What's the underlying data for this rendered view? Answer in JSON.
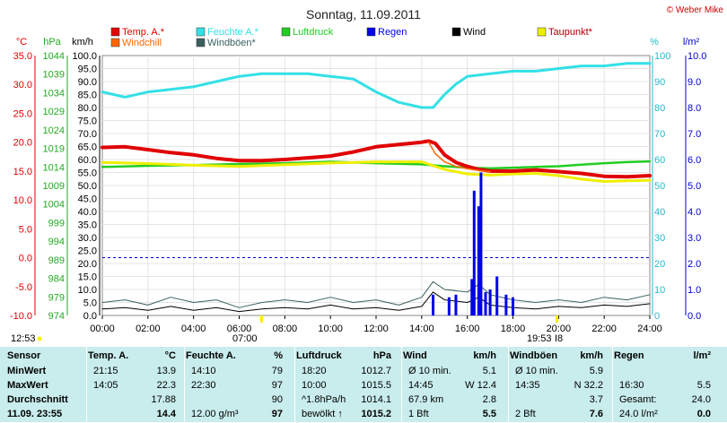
{
  "title": "Sonntag, 11.09.2011",
  "copyright": "© Weber Mike",
  "colors": {
    "temp": "#e00000",
    "humidity": "#33e0e6",
    "pressure": "#22cc22",
    "rain": "#0000ee",
    "wind": "#000000",
    "dewpoint": "#eeee00",
    "windchill": "#ff6600",
    "gust": "#3a6060",
    "axis_temp": "#e00000",
    "axis_press": "#22aa22",
    "axis_hum": "#22bbcc",
    "axis_rain": "#0000cc"
  },
  "legend": [
    {
      "label": "Temp. A.*",
      "color": "#e00000"
    },
    {
      "label": "Feuchte A.*",
      "color": "#33e0e6"
    },
    {
      "label": "Luftdruck",
      "color": "#22cc22"
    },
    {
      "label": "Regen",
      "color": "#0000ee"
    },
    {
      "label": "Wind",
      "color": "#000000"
    },
    {
      "label": "Taupunkt*",
      "color": "#eeee00"
    },
    {
      "label": "Windchill",
      "color": "#ff6600"
    },
    {
      "label": "Windböen*",
      "color": "#3a6060"
    }
  ],
  "axis_units": {
    "temp": "°C",
    "press": "hPa",
    "wind": "km/h",
    "hum": "%",
    "rain": "l/m²"
  },
  "time_marks": {
    "start": "12:53",
    "sunrise": "07:00",
    "sunset": "19:53",
    "sunset_suffix": "I8"
  },
  "chart_data": {
    "type": "line",
    "x_ticks": [
      "00:00",
      "02:00",
      "04:00",
      "06:00",
      "08:00",
      "10:00",
      "12:00",
      "14:00",
      "16:00",
      "18:00",
      "20:00",
      "22:00",
      "24:00"
    ],
    "xlim": [
      0,
      24
    ],
    "temp_axis": {
      "label": "°C",
      "range": [
        -10,
        35
      ],
      "ticks": [
        "35.0",
        "30.0",
        "25.0",
        "20.0",
        "15.0",
        "10.0",
        "5.0",
        "0.0",
        "-5.0",
        "-10.0"
      ]
    },
    "press_axis": {
      "label": "hPa",
      "range": [
        974,
        1044
      ],
      "ticks": [
        "1044",
        "1039",
        "1034",
        "1029",
        "1024",
        "1019",
        "1014",
        "1009",
        "1004",
        "999",
        "994",
        "989",
        "984",
        "979",
        "974"
      ]
    },
    "wind_axis": {
      "label": "km/h",
      "range": [
        0,
        100
      ],
      "ticks": [
        "100.0",
        "95.0",
        "90.0",
        "85.0",
        "80.0",
        "75.0",
        "70.0",
        "65.0",
        "60.0",
        "55.0",
        "50.0",
        "45.0",
        "40.0",
        "35.0",
        "30.0",
        "25.0",
        "20.0",
        "15.0",
        "10.0",
        "5.0",
        "0.0"
      ]
    },
    "hum_axis": {
      "label": "%",
      "range": [
        0,
        100
      ],
      "ticks": [
        "100",
        "90",
        "80",
        "70",
        "60",
        "50",
        "40",
        "30",
        "20",
        "10",
        "0"
      ]
    },
    "rain_axis": {
      "label": "l/m²",
      "range": [
        0,
        10
      ],
      "ticks": [
        "10.0",
        "9.0",
        "8.0",
        "7.0",
        "6.0",
        "5.0",
        "4.0",
        "3.0",
        "2.0",
        "1.0",
        "0.0"
      ]
    },
    "series": [
      {
        "name": "Temp. A.*",
        "axis": "temp",
        "x": [
          0,
          1,
          2,
          3,
          4,
          5,
          6,
          7,
          8,
          9,
          10,
          11,
          12,
          13,
          14,
          14.3,
          14.6,
          15,
          15.5,
          16,
          16.5,
          17,
          18,
          19,
          20,
          21,
          22,
          23,
          24
        ],
        "y": [
          19.1,
          19.2,
          18.7,
          18.2,
          17.8,
          17.2,
          16.8,
          16.8,
          17.0,
          17.3,
          17.6,
          18.3,
          19.2,
          19.6,
          20.0,
          20.2,
          19.8,
          17.8,
          16.5,
          15.8,
          15.3,
          15.0,
          15.0,
          15.2,
          14.9,
          14.6,
          14.1,
          14.0,
          14.2
        ]
      },
      {
        "name": "Feuchte A.*",
        "axis": "hum",
        "x": [
          0,
          0.5,
          1,
          2,
          3,
          4,
          5,
          6,
          7,
          8,
          9,
          10,
          11,
          12,
          13,
          14,
          14.5,
          15,
          15.5,
          16,
          17,
          18,
          19,
          20,
          21,
          22,
          23,
          24
        ],
        "y": [
          86,
          85,
          84,
          86,
          87,
          88,
          90,
          92,
          93,
          93,
          93,
          92,
          91,
          86,
          82,
          80,
          80,
          85,
          89,
          92,
          93,
          94,
          94,
          95,
          96,
          96,
          97,
          97
        ]
      },
      {
        "name": "Luftdruck",
        "axis": "press",
        "x": [
          0,
          2,
          4,
          6,
          8,
          10,
          12,
          14,
          15,
          16,
          17,
          18,
          19,
          20,
          21,
          22,
          23,
          24
        ],
        "y": [
          1014.0,
          1014.3,
          1014.5,
          1014.8,
          1015.0,
          1015.4,
          1015.0,
          1014.7,
          1014.2,
          1013.8,
          1013.6,
          1013.8,
          1014.0,
          1014.2,
          1014.6,
          1015.0,
          1015.3,
          1015.5
        ]
      },
      {
        "name": "Taupunkt*",
        "axis": "temp",
        "x": [
          0,
          2,
          4,
          6,
          8,
          10,
          12,
          14,
          15,
          16,
          17,
          18,
          19,
          20,
          21,
          22,
          23,
          24
        ],
        "y": [
          16.5,
          16.3,
          16.0,
          15.8,
          16.1,
          16.4,
          16.6,
          16.6,
          15.3,
          14.5,
          14.3,
          14.5,
          14.6,
          14.2,
          13.6,
          13.2,
          13.3,
          13.4
        ]
      },
      {
        "name": "Wind",
        "axis": "wind",
        "x": [
          0,
          1,
          2,
          3,
          4,
          5,
          6,
          7,
          8,
          9,
          10,
          11,
          12,
          13,
          14,
          14.5,
          15,
          16,
          16.5,
          17,
          18,
          19,
          20,
          21,
          22,
          23,
          24
        ],
        "y": [
          2.5,
          3,
          2,
          3.5,
          2,
          3,
          1.5,
          2.5,
          3,
          2.5,
          4,
          2.5,
          3,
          2,
          3.5,
          9,
          6,
          5,
          7,
          4,
          3,
          2.5,
          3.5,
          3,
          4,
          3.5,
          4.5
        ]
      },
      {
        "name": "Windböen*",
        "axis": "wind",
        "x": [
          0,
          1,
          2,
          3,
          4,
          5,
          6,
          7,
          8,
          9,
          10,
          11,
          12,
          13,
          14,
          14.5,
          15,
          16,
          16.5,
          17,
          18,
          19,
          20,
          21,
          22,
          23,
          24
        ],
        "y": [
          5,
          6,
          4,
          7,
          5,
          6,
          3,
          5,
          6,
          5,
          7,
          5,
          6,
          4,
          7,
          13,
          10,
          9,
          12,
          8,
          6,
          5,
          6,
          5,
          7,
          6,
          8
        ]
      },
      {
        "name": "Regen",
        "axis": "rain",
        "type": "bar",
        "x": [
          14.5,
          15.2,
          15.5,
          16.2,
          16.3,
          16.5,
          16.6,
          16.8,
          17.0,
          17.3,
          17.7,
          18.0
        ],
        "y": [
          0.8,
          0.7,
          0.8,
          1.4,
          4.8,
          4.2,
          5.5,
          0.9,
          1.0,
          1.5,
          0.8,
          0.7
        ]
      },
      {
        "name": "Windchill",
        "axis": "temp",
        "x": [
          14.3,
          14.6,
          15,
          15.5,
          16,
          16.5,
          17
        ],
        "y": [
          20.0,
          18.0,
          16.6,
          15.8,
          15.4,
          15.1,
          14.9
        ]
      }
    ]
  },
  "stats": {
    "headers": [
      {
        "label": "Sensor",
        "unit": ""
      },
      {
        "label": "Temp. A.",
        "unit": "°C"
      },
      {
        "label": "Feuchte A.",
        "unit": "%"
      },
      {
        "label": "Luftdruck",
        "unit": "hPa"
      },
      {
        "label": "Wind",
        "unit": "km/h"
      },
      {
        "label": "Windböen",
        "unit": "km/h"
      },
      {
        "label": "Regen",
        "unit": "l/m²"
      }
    ],
    "rows": [
      {
        "label": "MinWert",
        "cells": [
          [
            "21:15",
            "13.9"
          ],
          [
            "14:10",
            "79"
          ],
          [
            "18:20",
            "1012.7"
          ],
          [
            "Ø 10 min.",
            "5.1"
          ],
          [
            "Ø 10 min.",
            "5.9"
          ],
          [
            "",
            ""
          ]
        ]
      },
      {
        "label": "MaxWert",
        "cells": [
          [
            "14:05",
            "22.3"
          ],
          [
            "22:30",
            "97"
          ],
          [
            "10:00",
            "1015.5"
          ],
          [
            "14:45",
            "W 12.4"
          ],
          [
            "14:35",
            "N 32.2"
          ],
          [
            "16:30",
            "5.5"
          ]
        ]
      },
      {
        "label": "Durchschnitt",
        "cells": [
          [
            "",
            "17.88"
          ],
          [
            "",
            "90"
          ],
          [
            "^1.8hPa/h",
            "1014.1"
          ],
          [
            "67.9 km",
            "2.8"
          ],
          [
            "",
            "3.7"
          ],
          [
            "Gesamt:",
            "24.0"
          ]
        ]
      },
      {
        "label": "11.09. 23:55",
        "cells": [
          [
            "",
            "14.4"
          ],
          [
            "12.00 g/m³",
            "97"
          ],
          [
            "bewölkt ↑",
            "1015.2"
          ],
          [
            "1 Bft",
            "5.5"
          ],
          [
            "2 Bft",
            "7.6"
          ],
          [
            "24.0 l/m²",
            "0.0"
          ]
        ]
      }
    ]
  }
}
